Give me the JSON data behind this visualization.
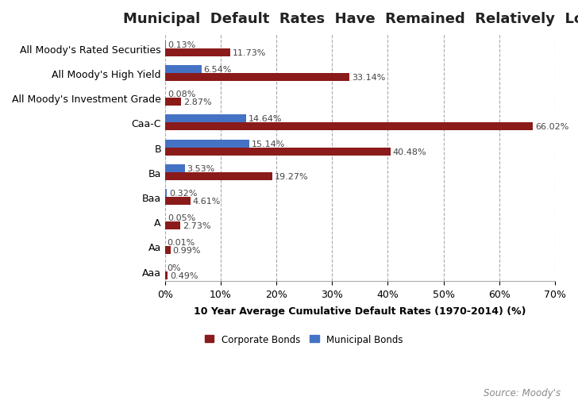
{
  "title": "Municipal  Default  Rates  Have  Remained  Relatively  Low",
  "categories": [
    "All Moody's Rated Securities",
    "All Moody's High Yield",
    "All Moody's Investment Grade",
    "Caa-C",
    "B",
    "Ba",
    "Baa",
    "A",
    "Aa",
    "Aaa"
  ],
  "corporate_bonds": [
    11.73,
    33.14,
    2.87,
    66.02,
    40.48,
    19.27,
    4.61,
    2.73,
    0.99,
    0.49
  ],
  "municipal_bonds": [
    0.13,
    6.54,
    0.08,
    14.64,
    15.14,
    3.53,
    0.32,
    0.05,
    0.01,
    0.0
  ],
  "corporate_color": "#8B1A1A",
  "municipal_color": "#4472C4",
  "background_color": "#FFFFFF",
  "xlabel": "10 Year Average Cumulative Default Rates (1970-2014) (%)",
  "xlim": [
    0,
    70
  ],
  "xticks": [
    0,
    10,
    20,
    30,
    40,
    50,
    60,
    70
  ],
  "xtick_labels": [
    "0%",
    "10%",
    "20%",
    "30%",
    "40%",
    "50%",
    "60%",
    "70%"
  ],
  "legend_corporate": "Corporate Bonds",
  "legend_municipal": "Municipal Bonds",
  "source_text": "Source: Moody's",
  "title_fontsize": 13,
  "label_fontsize": 8.5,
  "tick_fontsize": 9,
  "bar_height": 0.32
}
